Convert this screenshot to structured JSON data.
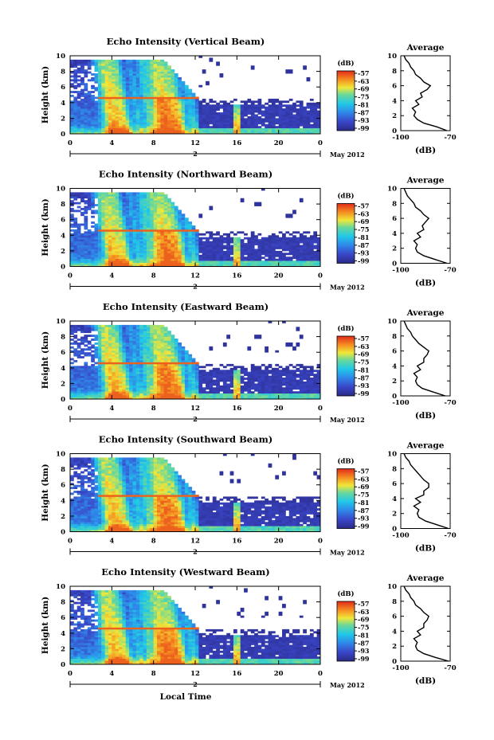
{
  "chart_data": [
    {
      "type": "heatmap",
      "title": "Echo Intensity (Vertical Beam)",
      "ylabel": "Height (km)",
      "xlim": [
        0,
        24
      ],
      "ylim": [
        0,
        10
      ],
      "x_ticks": [
        "0",
        "4",
        "8",
        "12",
        "16",
        "20",
        "0"
      ],
      "y_ticks": [
        "0",
        "2",
        "4",
        "6",
        "8",
        "10"
      ],
      "day_label": "2",
      "month_label": "May 2012",
      "colorbar": {
        "unit": "(dB)",
        "ticks": [
          "-57",
          "-63",
          "-69",
          "-75",
          "-81",
          "-87",
          "-93",
          "-99"
        ]
      },
      "profile": {
        "title": "Average",
        "xlabel": "(dB)",
        "xlim": [
          -100,
          -70
        ],
        "x_ticks": [
          "-100",
          "-70"
        ],
        "y_ticks": [
          "0",
          "2",
          "4",
          "6",
          "8",
          "10"
        ],
        "heights": [
          0,
          0.5,
          1,
          1.5,
          2,
          2.5,
          3,
          3.5,
          4,
          4.5,
          5,
          5.5,
          6,
          6.5,
          7,
          7.5,
          8,
          8.5,
          9,
          9.5,
          10
        ],
        "values": [
          -72,
          -78,
          -86,
          -90,
          -92,
          -91,
          -93,
          -89,
          -91,
          -87,
          -88,
          -84,
          -82,
          -86,
          -88,
          -91,
          -92,
          -94,
          -95,
          -97,
          -98
        ]
      }
    },
    {
      "type": "heatmap",
      "title": "Echo Intensity (Northward Beam)",
      "ylabel": "Height (km)",
      "xlim": [
        0,
        24
      ],
      "ylim": [
        0,
        10
      ],
      "x_ticks": [
        "0",
        "4",
        "8",
        "12",
        "16",
        "20",
        "0"
      ],
      "y_ticks": [
        "0",
        "2",
        "4",
        "6",
        "8",
        "10"
      ],
      "day_label": "2",
      "month_label": "May 2012",
      "colorbar": {
        "unit": "(dB)",
        "ticks": [
          "-57",
          "-63",
          "-69",
          "-75",
          "-81",
          "-87",
          "-93",
          "-99"
        ]
      },
      "profile": {
        "title": "Average",
        "xlabel": "(dB)",
        "xlim": [
          -100,
          -70
        ],
        "x_ticks": [
          "-100",
          "-70"
        ],
        "y_ticks": [
          "0",
          "2",
          "4",
          "6",
          "8",
          "10"
        ],
        "heights": [
          0,
          0.5,
          1,
          1.5,
          2,
          2.5,
          3,
          3.5,
          4,
          4.5,
          5,
          5.5,
          6,
          6.5,
          7,
          7.5,
          8,
          8.5,
          9,
          9.5,
          10
        ],
        "values": [
          -72,
          -79,
          -86,
          -90,
          -91,
          -90,
          -92,
          -88,
          -90,
          -86,
          -87,
          -85,
          -83,
          -86,
          -88,
          -91,
          -92,
          -94,
          -96,
          -97,
          -98
        ]
      }
    },
    {
      "type": "heatmap",
      "title": "Echo Intensity (Eastward Beam)",
      "ylabel": "Height (km)",
      "xlim": [
        0,
        24
      ],
      "ylim": [
        0,
        10
      ],
      "x_ticks": [
        "0",
        "4",
        "8",
        "12",
        "16",
        "20",
        "0"
      ],
      "y_ticks": [
        "0",
        "2",
        "4",
        "6",
        "8",
        "10"
      ],
      "day_label": "2",
      "month_label": "May 2012",
      "colorbar": {
        "unit": "(dB)",
        "ticks": [
          "-57",
          "-63",
          "-69",
          "-75",
          "-81",
          "-87",
          "-93",
          "-99"
        ]
      },
      "profile": {
        "title": "Average",
        "xlabel": "(dB)",
        "xlim": [
          -100,
          -70
        ],
        "x_ticks": [
          "-100",
          "-70"
        ],
        "y_ticks": [
          "0",
          "2",
          "4",
          "6",
          "8",
          "10"
        ],
        "heights": [
          0,
          0.5,
          1,
          1.5,
          2,
          2.5,
          3,
          3.5,
          4,
          4.5,
          5,
          5.5,
          6,
          6.5,
          7,
          7.5,
          8,
          8.5,
          9,
          9.5,
          10
        ],
        "values": [
          -73,
          -80,
          -87,
          -90,
          -91,
          -90,
          -92,
          -88,
          -90,
          -86,
          -86,
          -84,
          -83,
          -86,
          -89,
          -91,
          -93,
          -94,
          -96,
          -97,
          -98
        ]
      }
    },
    {
      "type": "heatmap",
      "title": "Echo Intensity (Southward Beam)",
      "ylabel": "Height (km)",
      "xlim": [
        0,
        24
      ],
      "ylim": [
        0,
        10
      ],
      "x_ticks": [
        "0",
        "4",
        "8",
        "12",
        "16",
        "20",
        "0"
      ],
      "y_ticks": [
        "0",
        "2",
        "4",
        "6",
        "8",
        "10"
      ],
      "day_label": "2",
      "month_label": "May 2012",
      "colorbar": {
        "unit": "(dB)",
        "ticks": [
          "-57",
          "-63",
          "-69",
          "-75",
          "-81",
          "-87",
          "-93",
          "-99"
        ]
      },
      "profile": {
        "title": "Average",
        "xlabel": "(dB)",
        "xlim": [
          -100,
          -70
        ],
        "x_ticks": [
          "-100",
          "-70"
        ],
        "y_ticks": [
          "0",
          "2",
          "4",
          "6",
          "8",
          "10"
        ],
        "heights": [
          0,
          0.5,
          1,
          1.5,
          2,
          2.5,
          3,
          3.5,
          4,
          4.5,
          5,
          5.5,
          6,
          6.5,
          7,
          7.5,
          8,
          8.5,
          9,
          9.5,
          10
        ],
        "values": [
          -71,
          -78,
          -85,
          -89,
          -90,
          -89,
          -92,
          -88,
          -91,
          -86,
          -86,
          -83,
          -83,
          -86,
          -88,
          -90,
          -92,
          -94,
          -95,
          -97,
          -98
        ]
      }
    },
    {
      "type": "heatmap",
      "title": "Echo Intensity (Westward Beam)",
      "ylabel": "Height (km)",
      "xlabel": "Local Time",
      "xlim": [
        0,
        24
      ],
      "ylim": [
        0,
        10
      ],
      "x_ticks": [
        "0",
        "4",
        "8",
        "12",
        "16",
        "20",
        "0"
      ],
      "y_ticks": [
        "0",
        "2",
        "4",
        "6",
        "8",
        "10"
      ],
      "day_label": "2",
      "month_label": "May 2012",
      "colorbar": {
        "unit": "(dB)",
        "ticks": [
          "-57",
          "-63",
          "-69",
          "-75",
          "-81",
          "-87",
          "-93",
          "-99"
        ]
      },
      "profile": {
        "title": "Average",
        "xlabel": "(dB)",
        "xlim": [
          -100,
          -70
        ],
        "x_ticks": [
          "-100",
          "-70"
        ],
        "y_ticks": [
          "0",
          "2",
          "4",
          "6",
          "8",
          "10"
        ],
        "heights": [
          0,
          0.5,
          1,
          1.5,
          2,
          2.5,
          3,
          3.5,
          4,
          4.5,
          5,
          5.5,
          6,
          6.5,
          7,
          7.5,
          8,
          8.5,
          9,
          9.5,
          10
        ],
        "values": [
          -71,
          -79,
          -86,
          -90,
          -91,
          -90,
          -92,
          -88,
          -90,
          -86,
          -86,
          -84,
          -83,
          -86,
          -88,
          -91,
          -92,
          -94,
          -95,
          -97,
          -98
        ]
      }
    }
  ]
}
